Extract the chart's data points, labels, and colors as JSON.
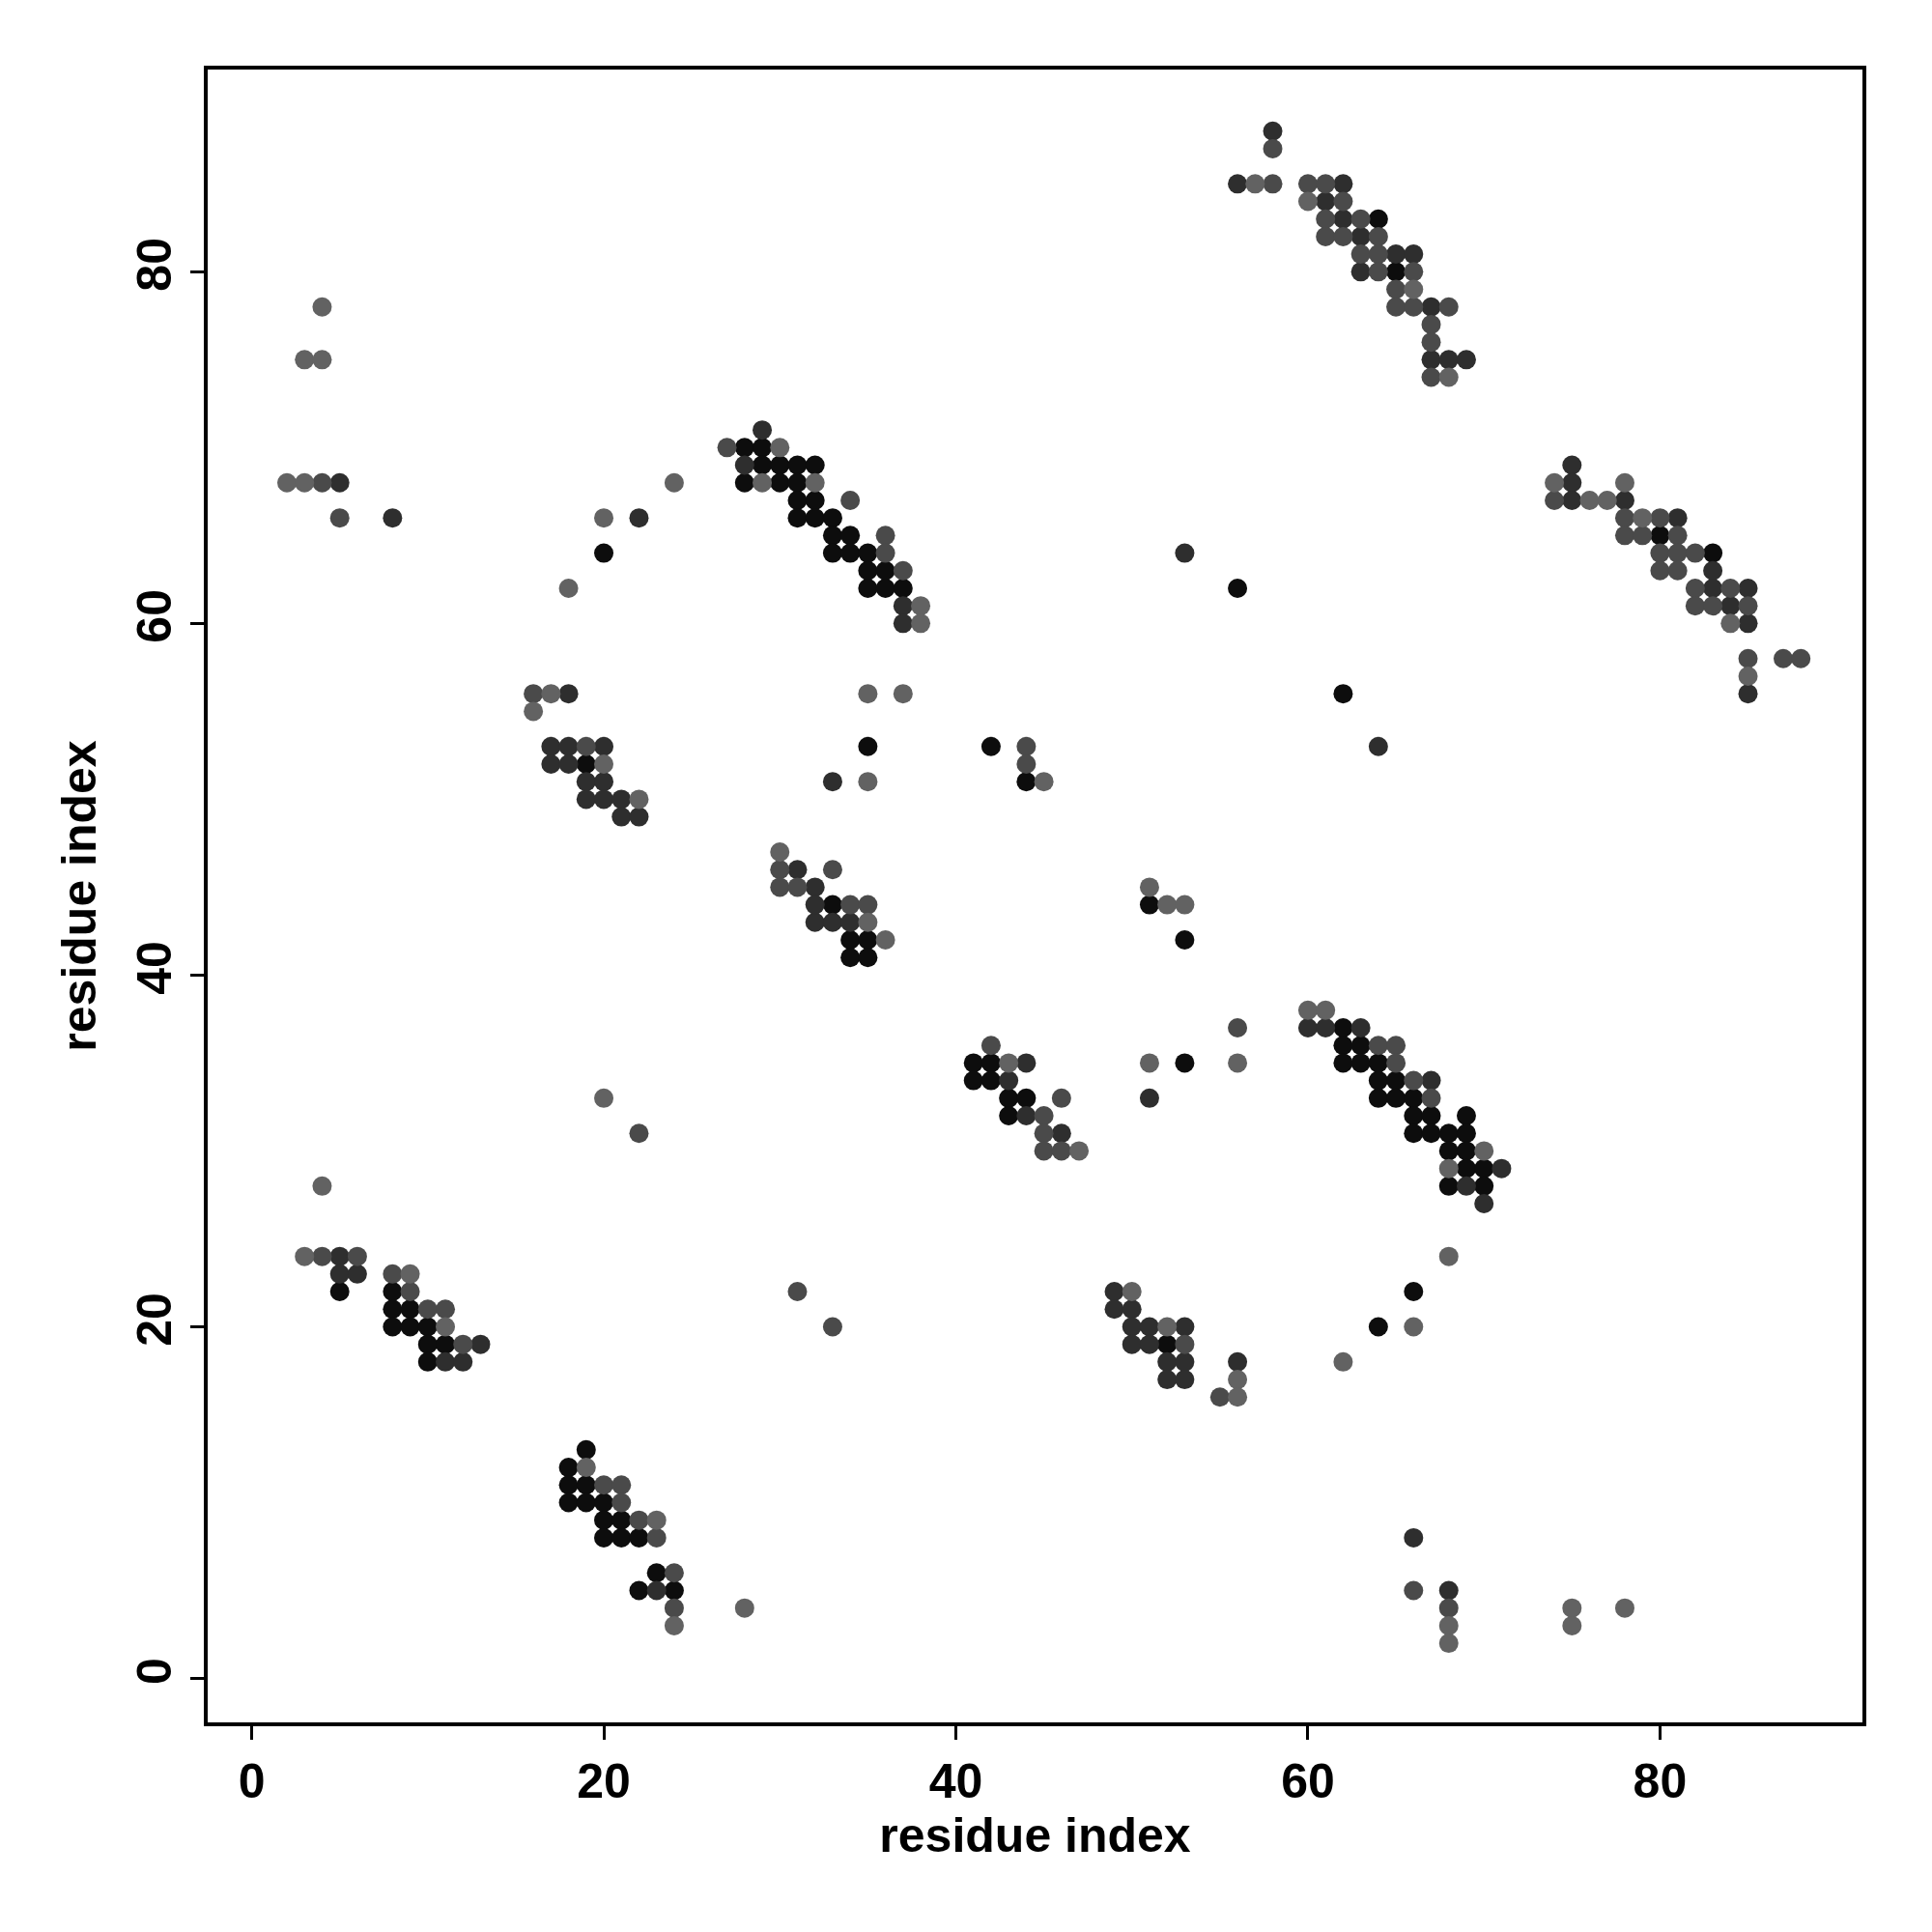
{
  "chart_data": {
    "type": "scatter",
    "xlabel": "residue index",
    "ylabel": "residue index",
    "xlim": [
      -2.5,
      91.5
    ],
    "ylim": [
      -2.5,
      91.5
    ],
    "xticks": [
      0,
      20,
      40,
      60,
      80
    ],
    "yticks": [
      0,
      20,
      40,
      60,
      80
    ],
    "grid": false,
    "marker": "circle",
    "series": [
      {
        "color": "#0d0d0d",
        "x": [
          28,
          29,
          29,
          30,
          31,
          32,
          28,
          30,
          31,
          31,
          32,
          31,
          32,
          33,
          33,
          34,
          33,
          34,
          35,
          35,
          36,
          35,
          36,
          37,
          20,
          35,
          42,
          44,
          64,
          65,
          83,
          80,
          62,
          56,
          19,
          34,
          35,
          34,
          35,
          33,
          51,
          53,
          41,
          42,
          41,
          42,
          43,
          44,
          43,
          53,
          52,
          5,
          8,
          8,
          9,
          8,
          9,
          10,
          10,
          11,
          10,
          19,
          18,
          18,
          19,
          18,
          19,
          20,
          20,
          21,
          20,
          21,
          22,
          23,
          22,
          24,
          62,
          62,
          63,
          62,
          63,
          64,
          64,
          65,
          64,
          65,
          66,
          66,
          67,
          69,
          66,
          67,
          68,
          69,
          68,
          69,
          69,
          70,
          68,
          70,
          66,
          64
        ],
        "values": [
          70,
          70,
          69,
          69,
          69,
          69,
          68,
          68,
          68,
          67,
          67,
          66,
          66,
          66,
          65,
          65,
          64,
          64,
          64,
          63,
          63,
          62,
          62,
          62,
          64,
          53,
          53,
          51,
          83,
          80,
          64,
          65,
          56,
          62,
          52,
          42,
          42,
          41,
          41,
          44,
          44,
          42,
          35,
          35,
          34,
          34,
          33,
          33,
          32,
          35,
          19,
          22,
          22,
          21,
          21,
          20,
          20,
          20,
          19,
          19,
          18,
          13,
          12,
          11,
          11,
          10,
          10,
          10,
          9,
          9,
          8,
          8,
          8,
          6,
          5,
          5,
          37,
          36,
          36,
          35,
          35,
          35,
          34,
          34,
          33,
          33,
          33,
          32,
          32,
          32,
          31,
          31,
          31,
          31,
          30,
          30,
          29,
          29,
          28,
          28,
          22,
          20
        ]
      },
      {
        "color": "#2e2e2e",
        "x": [
          29,
          28,
          37,
          37,
          22,
          5,
          8,
          33,
          62,
          61,
          62,
          63,
          65,
          66,
          63,
          67,
          67,
          68,
          69,
          58,
          56,
          75,
          75,
          75,
          78,
          81,
          83,
          83,
          85,
          84,
          85,
          85,
          64,
          53,
          18,
          17,
          18,
          20,
          17,
          18,
          19,
          20,
          19,
          20,
          21,
          21,
          22,
          31,
          32,
          32,
          33,
          34,
          32,
          44,
          43,
          44,
          46,
          51,
          60,
          61,
          49,
          49,
          50,
          50,
          51,
          53,
          50,
          51,
          52,
          53,
          56,
          52,
          53,
          5,
          5,
          6,
          13,
          11,
          12,
          23,
          63,
          67,
          69,
          70,
          71,
          66,
          68
        ],
        "values": [
          71,
          69,
          61,
          60,
          66,
          68,
          66,
          51,
          85,
          84,
          83,
          82,
          81,
          81,
          80,
          78,
          75,
          75,
          75,
          88,
          85,
          69,
          68,
          67,
          67,
          66,
          63,
          62,
          62,
          61,
          60,
          56,
          53,
          64,
          56,
          53,
          53,
          53,
          52,
          52,
          51,
          51,
          50,
          50,
          50,
          49,
          49,
          46,
          45,
          43,
          43,
          43,
          44,
          35,
          34,
          32,
          31,
          33,
          37,
          37,
          22,
          21,
          21,
          20,
          20,
          20,
          19,
          19,
          18,
          18,
          18,
          17,
          17,
          24,
          23,
          23,
          19,
          18,
          18,
          5,
          37,
          34,
          28,
          27,
          29,
          8,
          5
        ]
      },
      {
        "color": "#4a4a4a",
        "x": [
          27,
          34,
          36,
          36,
          37,
          4,
          5,
          44,
          44,
          58,
          58,
          60,
          61,
          62,
          61,
          63,
          61,
          62,
          64,
          63,
          64,
          64,
          66,
          65,
          65,
          66,
          68,
          67,
          67,
          67,
          74,
          78,
          80,
          78,
          79,
          81,
          80,
          81,
          82,
          80,
          81,
          82,
          84,
          82,
          83,
          85,
          85,
          87,
          88,
          16,
          19,
          30,
          33,
          30,
          31,
          34,
          35,
          42,
          45,
          45,
          45,
          46,
          46,
          56,
          53,
          55,
          4,
          6,
          8,
          9,
          10,
          11,
          12,
          20,
          21,
          21,
          22,
          23,
          24,
          24,
          31,
          33,
          22,
          64,
          65,
          65,
          66,
          67,
          68,
          66
        ],
        "values": [
          70,
          67,
          65,
          64,
          63,
          68,
          66,
          53,
          52,
          87,
          85,
          85,
          85,
          84,
          83,
          83,
          82,
          82,
          82,
          81,
          81,
          80,
          80,
          79,
          78,
          78,
          78,
          77,
          76,
          74,
          67,
          66,
          66,
          65,
          65,
          65,
          64,
          64,
          64,
          63,
          63,
          62,
          62,
          61,
          61,
          61,
          58,
          58,
          58,
          56,
          53,
          46,
          46,
          45,
          45,
          44,
          44,
          36,
          32,
          31,
          30,
          30,
          33,
          37,
          19,
          16,
          24,
          24,
          23,
          22,
          21,
          21,
          19,
          11,
          11,
          10,
          9,
          8,
          6,
          4,
          22,
          20,
          31,
          36,
          36,
          35,
          34,
          33,
          4,
          5
        ]
      },
      {
        "color": "#626262",
        "x": [
          30,
          29,
          32,
          38,
          38,
          4,
          3,
          4,
          2,
          3,
          20,
          18,
          24,
          35,
          37,
          35,
          45,
          57,
          60,
          66,
          68,
          74,
          76,
          77,
          78,
          79,
          84,
          85,
          17,
          16,
          20,
          22,
          30,
          36,
          35,
          43,
          47,
          51,
          52,
          53,
          51,
          56,
          60,
          61,
          50,
          52,
          56,
          56,
          3,
          4,
          9,
          11,
          19,
          23,
          24,
          28,
          20,
          70,
          68,
          68,
          66,
          62,
          68,
          68,
          75,
          75,
          78
        ],
        "values": [
          70,
          68,
          68,
          61,
          60,
          78,
          75,
          75,
          68,
          68,
          66,
          62,
          68,
          56,
          56,
          51,
          51,
          85,
          84,
          79,
          74,
          68,
          67,
          67,
          68,
          66,
          60,
          57,
          56,
          55,
          52,
          50,
          47,
          42,
          43,
          35,
          30,
          45,
          44,
          44,
          35,
          35,
          38,
          38,
          22,
          20,
          17,
          16,
          24,
          28,
          23,
          20,
          12,
          9,
          3,
          4,
          33,
          30,
          29,
          24,
          20,
          18,
          3,
          2,
          4,
          3,
          4
        ]
      }
    ]
  }
}
